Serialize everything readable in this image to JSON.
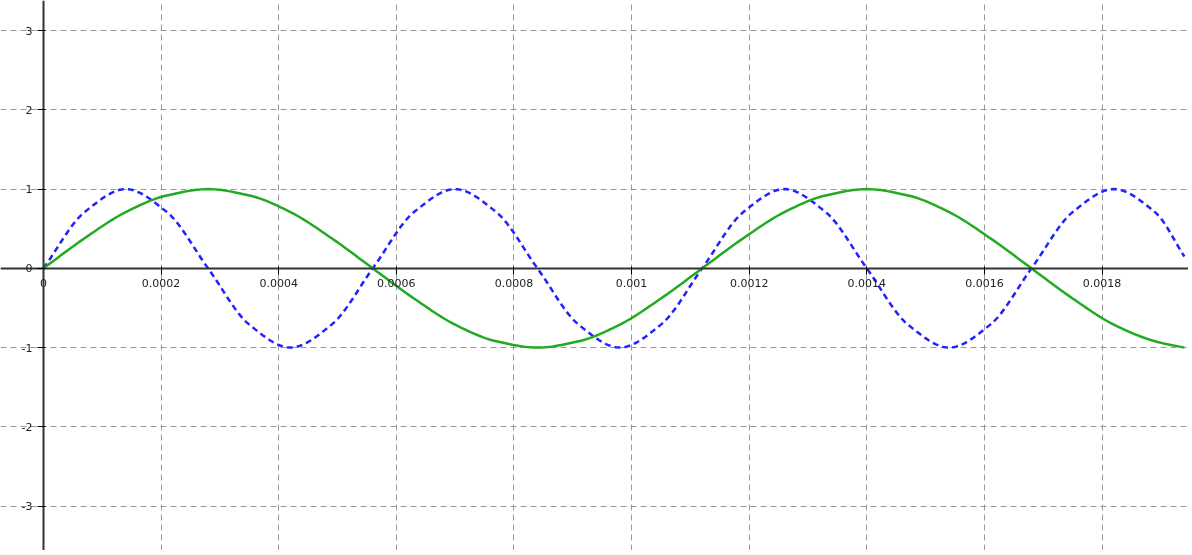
{
  "chart_data": {
    "type": "line",
    "x": [
      0,
      7e-05,
      0.00014,
      0.00021,
      0.00028,
      0.00035,
      0.00042,
      0.00049,
      0.00056,
      0.00063,
      0.0007,
      0.00077,
      0.00084,
      0.00091,
      0.00098,
      0.00105,
      0.00112,
      0.00119,
      0.00126,
      0.00133,
      0.0014,
      0.00147,
      0.00154,
      0.00161,
      0.00168,
      0.00175,
      0.00182,
      0.00189,
      0.00194
    ],
    "series": [
      {
        "color": "#2222ff",
        "line_style": "dashed",
        "values": [
          0,
          0.71,
          1,
          0.71,
          0,
          -0.71,
          -1,
          -0.71,
          0,
          0.71,
          1,
          0.71,
          0,
          -0.71,
          -1,
          -0.71,
          0,
          0.71,
          1,
          0.71,
          0,
          -0.71,
          -1,
          -0.71,
          0,
          0.71,
          1,
          0.71,
          0.15
        ]
      },
      {
        "color": "#22aa22",
        "line_style": "solid",
        "values": [
          0,
          0.38,
          0.71,
          0.92,
          1,
          0.92,
          0.71,
          0.38,
          0,
          -0.38,
          -0.71,
          -0.92,
          -1,
          -0.92,
          -0.71,
          -0.38,
          0,
          0.38,
          0.71,
          0.92,
          1,
          0.92,
          0.71,
          0.38,
          0,
          -0.38,
          -0.71,
          -0.92,
          -1
        ]
      }
    ],
    "xlim": [
      -7.3e-05,
      0.001947
    ],
    "ylim": [
      -3.56,
      3.38
    ],
    "xticks": [
      0,
      0.0002,
      0.0004,
      0.0006,
      0.0008,
      0.001,
      0.0012,
      0.0014,
      0.0016,
      0.0018
    ],
    "yticks": [
      -3,
      -2,
      -1,
      0,
      1,
      2,
      3
    ],
    "grid": true
  }
}
